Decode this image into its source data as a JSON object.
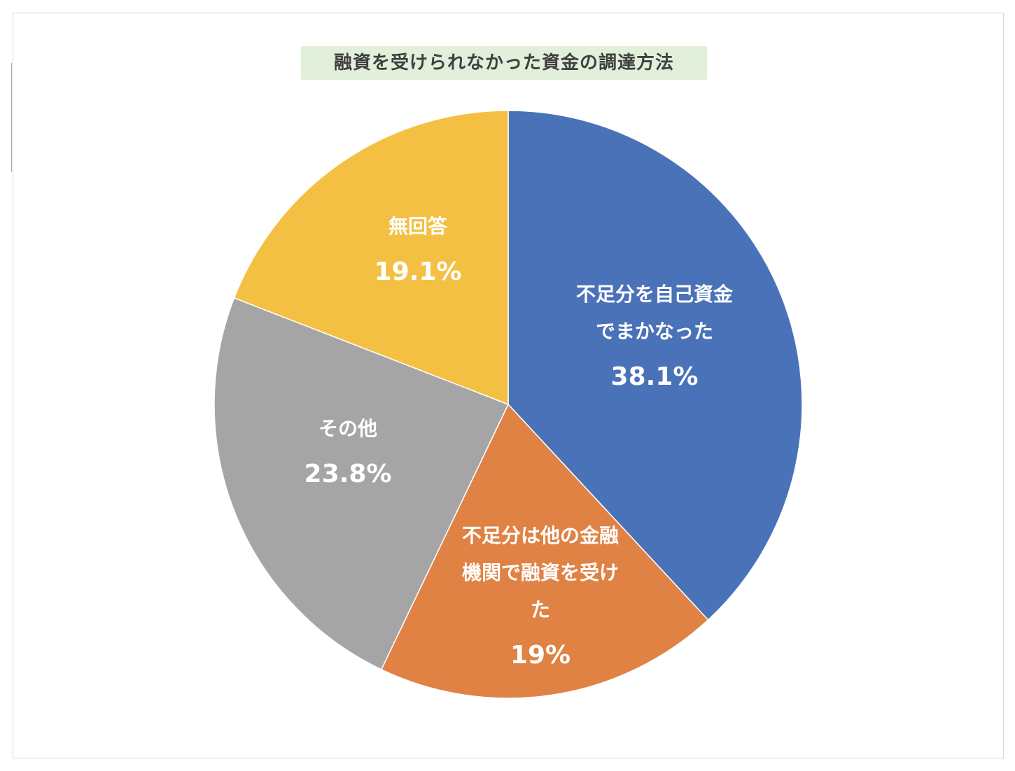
{
  "chart_data": {
    "type": "pie",
    "title": "融資を受けられなかった資金の調達方法",
    "start": "12 o'clock",
    "direction": "clockwise",
    "slices": [
      {
        "label": [
          "不足分を自己資金",
          "でまかなった"
        ],
        "value_label": "38.1%",
        "value": 38.1,
        "color": "#4a72b8"
      },
      {
        "label": [
          "不足分は他の金融",
          "機関で融資を受け",
          "た"
        ],
        "value_label": "19%",
        "value": 19.0,
        "color": "#df8244"
      },
      {
        "label": [
          "その他"
        ],
        "value_label": "23.8%",
        "value": 23.8,
        "color": "#a5a5a5"
      },
      {
        "label": [
          "無回答"
        ],
        "value_label": "19.1%",
        "value": 19.1,
        "color": "#f4c043"
      }
    ]
  }
}
